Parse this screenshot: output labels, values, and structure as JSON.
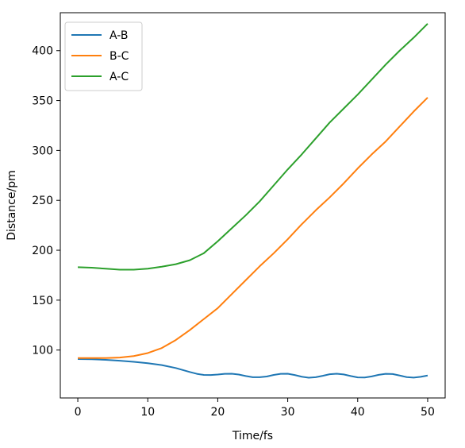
{
  "chart_data": {
    "type": "line",
    "title": "",
    "xlabel": "Time/fs",
    "ylabel": "Distance/pm",
    "xlim": [
      -2.5,
      52.5
    ],
    "ylim": [
      52,
      438
    ],
    "xticks": [
      0,
      10,
      20,
      30,
      40,
      50
    ],
    "yticks": [
      100,
      150,
      200,
      250,
      300,
      350,
      400
    ],
    "grid": false,
    "legend_position": "upper-left",
    "series": [
      {
        "name": "A-B",
        "color": "#1f77b4",
        "x": [
          0,
          2,
          4,
          6,
          8,
          10,
          12,
          14,
          16,
          17,
          18,
          19,
          20,
          21,
          22,
          23,
          24,
          25,
          26,
          27,
          28,
          29,
          30,
          31,
          32,
          33,
          34,
          35,
          36,
          37,
          38,
          39,
          40,
          41,
          42,
          43,
          44,
          45,
          46,
          47,
          48,
          49,
          50
        ],
        "y": [
          91,
          90.8,
          90.2,
          89.3,
          88.2,
          86.8,
          84.9,
          82.0,
          78.0,
          76.2,
          75.1,
          75.0,
          75.5,
          76.2,
          76.3,
          75.5,
          74.0,
          72.8,
          72.8,
          73.5,
          75.1,
          76.2,
          76.3,
          75.0,
          73.3,
          72.3,
          72.8,
          74.2,
          75.8,
          76.3,
          75.6,
          74.0,
          72.6,
          72.5,
          73.6,
          75.2,
          76.2,
          76.0,
          74.5,
          72.9,
          72.4,
          73.2,
          74.5
        ]
      },
      {
        "name": "B-C",
        "color": "#ff7f0e",
        "x": [
          0,
          2,
          4,
          6,
          8,
          10,
          12,
          14,
          16,
          18,
          20,
          22,
          24,
          26,
          28,
          30,
          32,
          34,
          36,
          38,
          40,
          42,
          44,
          46,
          48,
          50
        ],
        "y": [
          92,
          92,
          92,
          92.5,
          94,
          97,
          102,
          110,
          120,
          131,
          142,
          156,
          170,
          184,
          197,
          211,
          226,
          240,
          253,
          267,
          282,
          296,
          309,
          324,
          339,
          353
        ]
      },
      {
        "name": "A-C",
        "color": "#2ca02c",
        "x": [
          0,
          2,
          4,
          6,
          8,
          10,
          12,
          14,
          16,
          18,
          20,
          22,
          24,
          26,
          28,
          30,
          32,
          34,
          36,
          38,
          40,
          42,
          44,
          46,
          48,
          50
        ],
        "y": [
          183,
          182.5,
          181.5,
          180.5,
          180.5,
          181.5,
          183.5,
          186,
          190,
          197,
          209,
          222,
          235,
          249,
          265,
          281,
          296,
          312,
          328,
          342,
          356,
          371,
          386,
          400,
          413,
          427
        ]
      }
    ]
  }
}
